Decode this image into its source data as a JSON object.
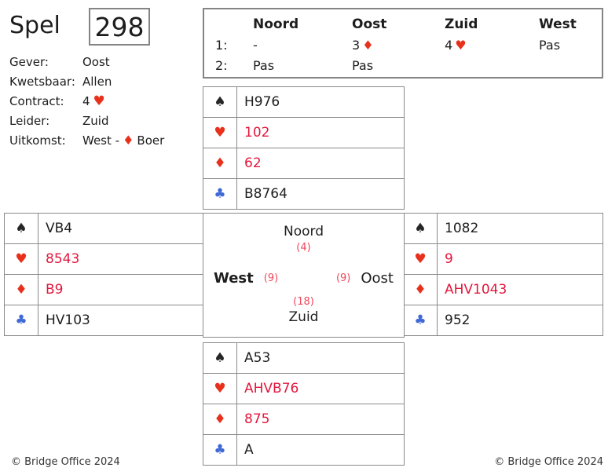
{
  "board": {
    "spel_label": "Spel",
    "number": "298",
    "gever_label": "Gever:",
    "gever_value": "Oost",
    "kwetsbaar_label": "Kwetsbaar:",
    "kwetsbaar_value": "Allen",
    "contract_label": "Contract:",
    "contract_level": "4",
    "leider_label": "Leider:",
    "leider_value": "Zuid",
    "uitkomst_label": "Uitkomst:",
    "uitkomst_prefix": "West -",
    "uitkomst_card": "Boer"
  },
  "suits": {
    "spade": "♠",
    "heart": "♥",
    "diamond": "♦",
    "club": "♣"
  },
  "bidding": {
    "headers": [
      "Noord",
      "Oost",
      "Zuid",
      "West"
    ],
    "rows": [
      {
        "num": "1:",
        "bids": [
          {
            "text": "-"
          },
          {
            "text": "3",
            "suit": "♦"
          },
          {
            "text": "4",
            "suit": "♥"
          },
          {
            "text": "Pas"
          }
        ]
      },
      {
        "num": "2:",
        "bids": [
          {
            "text": "Pas"
          },
          {
            "text": "Pas"
          },
          {
            "text": ""
          },
          {
            "text": ""
          }
        ]
      }
    ]
  },
  "hands": {
    "north": {
      "spades": "H976",
      "hearts": "102",
      "diamonds": "62",
      "clubs": "B8764"
    },
    "west": {
      "spades": "VB4",
      "hearts": "8543",
      "diamonds": "B9",
      "clubs": "HV103"
    },
    "east": {
      "spades": "1082",
      "hearts": "9",
      "diamonds": "AHV1043",
      "clubs": "952"
    },
    "south": {
      "spades": "A53",
      "hearts": "AHVB76",
      "diamonds": "875",
      "clubs": "A"
    }
  },
  "compass": {
    "north_label": "Noord",
    "north_points": "(4)",
    "west_label": "West",
    "west_points": "(9)",
    "east_points": "(9)",
    "east_label": "Oost",
    "south_points": "(18)",
    "south_label": "Zuid"
  },
  "footer": {
    "copyright_left": "© Bridge Office 2024",
    "copyright_right": "© Bridge Office 2024"
  },
  "colors": {
    "suit_red": "#e8311c",
    "suit_blue_club": "#4169d6",
    "card_red_text": "#e3173d",
    "points_red": "#f0485c",
    "border_gray": "#848484",
    "text_dark": "#1d1d1d"
  }
}
